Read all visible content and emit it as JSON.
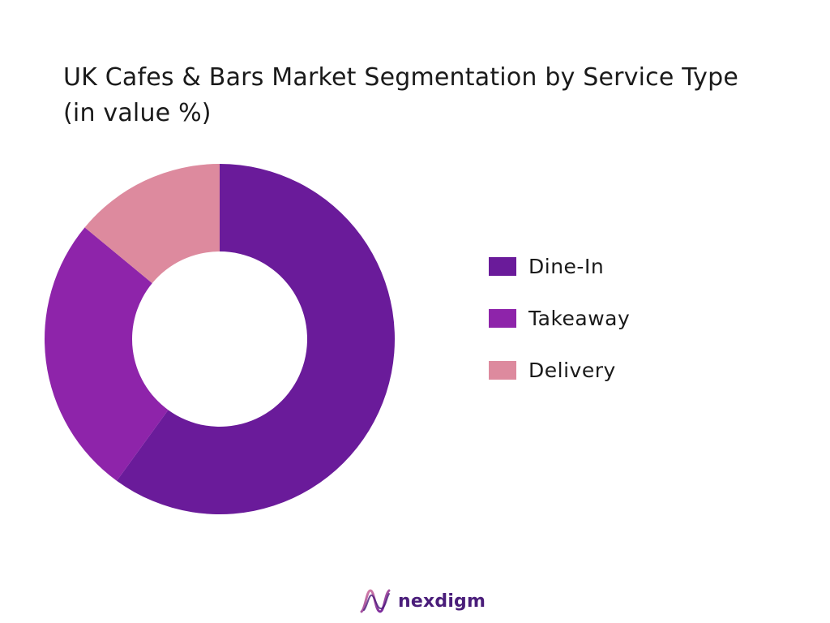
{
  "chart_data": {
    "type": "pie",
    "title": "UK Cafes & Bars Market Segmentation by Service Type (in value %)",
    "categories": [
      "Dine-In",
      "Takeaway",
      "Delivery"
    ],
    "values": [
      60,
      26,
      14
    ],
    "colors": [
      "#6a1b9a",
      "#8e24aa",
      "#dd8a9e"
    ],
    "legend_position": "right",
    "grid": false,
    "donut": true
  },
  "brand": {
    "name": "nexdigm",
    "icon": "nexdigm-logo-icon"
  }
}
